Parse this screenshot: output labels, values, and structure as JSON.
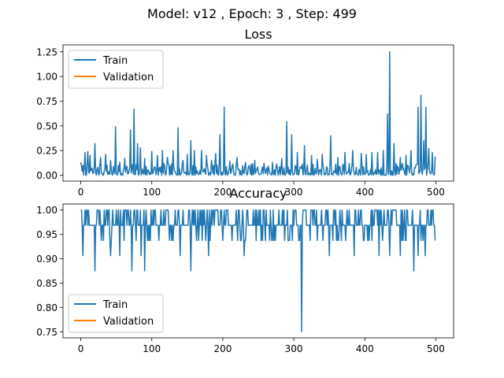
{
  "figure": {
    "suptitle": "Model: v12 , Epoch: 3 , Step: 499"
  },
  "colors": {
    "train": "#1f77b4",
    "validation": "#ff7f0e",
    "axis": "#000000"
  },
  "chart_data": [
    {
      "type": "line",
      "title": "Loss",
      "xlabel": "",
      "ylabel": "",
      "xlim": [
        -25,
        525
      ],
      "ylim": [
        -0.06,
        1.32
      ],
      "xticks": [
        0,
        100,
        200,
        300,
        400,
        500
      ],
      "yticks": [
        0.0,
        0.25,
        0.5,
        0.75,
        1.0,
        1.25
      ],
      "ytick_labels": [
        "0.00",
        "0.25",
        "0.50",
        "0.75",
        "1.00",
        "1.25"
      ],
      "grid": false,
      "legend": {
        "position": "upper left",
        "entries": [
          "Train",
          "Validation"
        ]
      },
      "series": [
        {
          "name": "Train",
          "x_start": 0,
          "x_step": 1,
          "baseline": [
            0.0,
            0.12
          ],
          "seed": 7,
          "spikes": [
            [
              0,
              0.13
            ],
            [
              3,
              0.1
            ],
            [
              6,
              0.23
            ],
            [
              10,
              0.24
            ],
            [
              13,
              0.2
            ],
            [
              20,
              0.32
            ],
            [
              28,
              0.18
            ],
            [
              35,
              0.21
            ],
            [
              42,
              0.15
            ],
            [
              49,
              0.49
            ],
            [
              55,
              0.13
            ],
            [
              62,
              0.17
            ],
            [
              70,
              0.46
            ],
            [
              75,
              0.67
            ],
            [
              80,
              0.32
            ],
            [
              84,
              0.28
            ],
            [
              90,
              0.17
            ],
            [
              100,
              0.24
            ],
            [
              108,
              0.2
            ],
            [
              115,
              0.25
            ],
            [
              122,
              0.18
            ],
            [
              130,
              0.25
            ],
            [
              137,
              0.48
            ],
            [
              144,
              0.15
            ],
            [
              150,
              0.21
            ],
            [
              155,
              0.35
            ],
            [
              160,
              0.25
            ],
            [
              170,
              0.25
            ],
            [
              177,
              0.2
            ],
            [
              184,
              0.15
            ],
            [
              190,
              0.22
            ],
            [
              196,
              0.41
            ],
            [
              202,
              0.69
            ],
            [
              210,
              0.14
            ],
            [
              220,
              0.18
            ],
            [
              232,
              0.13
            ],
            [
              245,
              0.15
            ],
            [
              258,
              0.12
            ],
            [
              270,
              0.13
            ],
            [
              283,
              0.17
            ],
            [
              290,
              0.54
            ],
            [
              297,
              0.41
            ],
            [
              305,
              0.23
            ],
            [
              315,
              0.3
            ],
            [
              325,
              0.2
            ],
            [
              333,
              0.16
            ],
            [
              340,
              0.21
            ],
            [
              352,
              0.4
            ],
            [
              362,
              0.18
            ],
            [
              372,
              0.23
            ],
            [
              383,
              0.25
            ],
            [
              395,
              0.22
            ],
            [
              402,
              0.21
            ],
            [
              410,
              0.23
            ],
            [
              418,
              0.23
            ],
            [
              426,
              0.25
            ],
            [
              432,
              0.62
            ],
            [
              435,
              1.25
            ],
            [
              441,
              0.32
            ],
            [
              450,
              0.18
            ],
            [
              458,
              0.2
            ],
            [
              465,
              0.25
            ],
            [
              475,
              0.69
            ],
            [
              479,
              0.81
            ],
            [
              483,
              0.35
            ],
            [
              486,
              0.69
            ],
            [
              490,
              0.27
            ],
            [
              495,
              0.23
            ],
            [
              499,
              0.19
            ]
          ]
        },
        {
          "name": "Validation",
          "values": []
        }
      ]
    },
    {
      "type": "line",
      "title": "Accuracy",
      "xlabel": "",
      "ylabel": "",
      "xlim": [
        -25,
        525
      ],
      "ylim": [
        0.7375,
        1.0125
      ],
      "xticks": [
        0,
        100,
        200,
        300,
        400,
        500
      ],
      "yticks": [
        0.75,
        0.8,
        0.85,
        0.9,
        0.95,
        1.0
      ],
      "ytick_labels": [
        "0.75",
        "0.80",
        "0.85",
        "0.90",
        "0.95",
        "1.00"
      ],
      "grid": false,
      "legend": {
        "position": "lower left",
        "entries": [
          "Train",
          "Validation"
        ]
      },
      "series": [
        {
          "name": "Train",
          "x_start": 0,
          "x_step": 1,
          "levels": [
            1.0,
            0.96875,
            0.9375
          ],
          "seed": 11,
          "dips": [
            [
              3,
              0.90625
            ],
            [
              20,
              0.875
            ],
            [
              42,
              0.90625
            ],
            [
              55,
              0.90625
            ],
            [
              72,
              0.875
            ],
            [
              85,
              0.90625
            ],
            [
              90,
              0.875
            ],
            [
              140,
              0.90625
            ],
            [
              155,
              0.875
            ],
            [
              180,
              0.90625
            ],
            [
              230,
              0.90625
            ],
            [
              311,
              0.75
            ],
            [
              350,
              0.90625
            ],
            [
              385,
              0.90625
            ],
            [
              420,
              0.90625
            ],
            [
              435,
              0.90625
            ],
            [
              450,
              0.90625
            ],
            [
              469,
              0.875
            ],
            [
              475,
              0.90625
            ],
            [
              485,
              0.90625
            ]
          ]
        },
        {
          "name": "Validation",
          "values": []
        }
      ]
    }
  ]
}
